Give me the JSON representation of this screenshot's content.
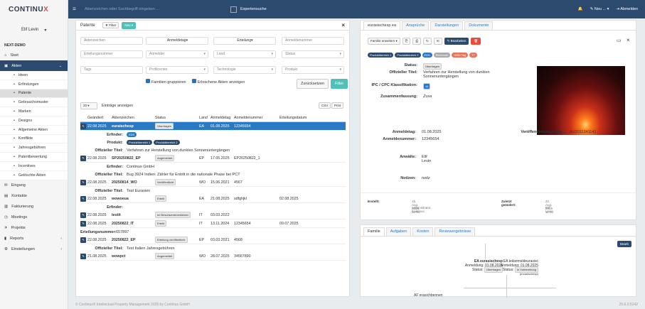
{
  "app": {
    "logo": "CONTINU",
    "logo_x": "X",
    "user": "Elif Levin",
    "org": "NEXT-DEMO",
    "version": "25.6.0.5242",
    "footer": "© Continux® Intellectual Property Management 2025 by Continux GmbH"
  },
  "top": {
    "search_placeholder": "Aktenzeichen oder Suchbegriff eingeben ...",
    "expert": "Expertensuche",
    "new": "Neu ...",
    "logout": "Abmelden"
  },
  "nav": [
    {
      "label": "Start",
      "icon": "⌂"
    },
    {
      "label": "Akten",
      "icon": "▣",
      "active": true
    },
    {
      "label": "Ideen",
      "sub": true
    },
    {
      "label": "Erfindungen",
      "sub": true
    },
    {
      "label": "Patente",
      "sub": true,
      "sel": true
    },
    {
      "label": "Gebrauchsmuster",
      "sub": true
    },
    {
      "label": "Marken",
      "sub": true
    },
    {
      "label": "Designs",
      "sub": true
    },
    {
      "label": "Allgemeine Akten",
      "sub": true
    },
    {
      "label": "Konflikte",
      "sub": true
    },
    {
      "label": "Jahresgebühren",
      "sub": true
    },
    {
      "label": "Patentbewertung",
      "sub": true
    },
    {
      "label": "Incentives",
      "sub": true
    },
    {
      "label": "Gelöschte Akten",
      "sub": true
    },
    {
      "label": "Eingang",
      "icon": "✉"
    },
    {
      "label": "Kontakte",
      "icon": "▤"
    },
    {
      "label": "Fakturierung",
      "icon": "▥"
    },
    {
      "label": "Meetings",
      "icon": "◷"
    },
    {
      "label": "Projekte",
      "icon": "✈"
    },
    {
      "label": "Reports",
      "icon": "▮",
      "arr": "‹"
    },
    {
      "label": "Einstellungen",
      "icon": "⚙",
      "arr": "‹"
    }
  ],
  "left": {
    "tab": "Patente",
    "filter": "Filter",
    "new": "Neu",
    "fields": [
      "Aktenzeichen",
      "Anmeldetag",
      "Erteilung",
      "Anmeldenummer",
      "Erteilungsnummer",
      "Anmelder",
      "Land",
      "Status",
      "Tags",
      "Profitcenter",
      "Technologie",
      "Produkt"
    ],
    "group": "Familien gruppieren",
    "deleted": "Erloschene Akten anzeigen",
    "reset": "Zurücksetzen",
    "filter_btn": "Filter",
    "per_page": "20",
    "per_label": "Einträge anzeigen",
    "csv": "CSV",
    "print": "Print",
    "headers": [
      "Geändert",
      "Aktenzeichen",
      "Status",
      "Land",
      "Anmeldetag",
      "Anmeldenummer",
      "Erteilungsdatum"
    ],
    "rows": [
      {
        "date": "22.08.2025",
        "az": "euraischesp",
        "status": "Übertragen",
        "land": "EA",
        "atag": "01.08.2025",
        "anr": "12345654",
        "edat": "",
        "sel": true
      },
      {
        "date": "22.08.2025",
        "az": "SP20250822_EP",
        "status": "Angemeldet",
        "land": "EP",
        "atag": "17.05.2025",
        "anr": "EP20250822_1",
        "edat": ""
      },
      {
        "date": "22.08.2025",
        "az": "20250814_WO",
        "status": "Veröffentlicht",
        "land": "WO",
        "atag": "15.06.2021",
        "anr": "4567",
        "edat": ""
      },
      {
        "date": "22.08.2025",
        "az": "wowoeua",
        "status": "Erteilt",
        "land": "EA",
        "atag": "21.08.2025",
        "anr": "sdfghjkl",
        "edat": "02.08.2025"
      },
      {
        "date": "22.08.2025",
        "az": "testit",
        "status": "Im Beschwerdeverfahren",
        "land": "IT",
        "atag": "03.03.2022",
        "anr": "",
        "edat": ""
      },
      {
        "date": "22.08.2025",
        "az": "20250822_IT",
        "status": "Erteilt",
        "land": "IT",
        "atag": "13.11.2024",
        "anr": "12345654",
        "edat": "09.07.2025"
      },
      {
        "date": "22.08.2025",
        "az": "20250822_EP",
        "status": "Erteilung veröffentlicht",
        "land": "EP",
        "atag": "03.03.2021",
        "anr": "4568",
        "edat": ""
      },
      {
        "date": "21.08.2025",
        "az": "wowpct",
        "status": "Angemeldet",
        "land": "WO",
        "atag": "28.07.2025",
        "anr": "34567890",
        "edat": ""
      }
    ],
    "d1": {
      "erfinder_l": "Erfinder:",
      "erfinder": "EDS",
      "produkt_l": "Produkt:",
      "p1": "Produktbereich 1",
      "p2": "Produktbereich 2",
      "titel_l": "Offizieller Titel:",
      "titel": "Verfahren zur Herstellung von dunklen Sonnenuntergängen"
    },
    "d2": {
      "erfinder": "Continux GmbH",
      "titel": "Bug 3924 Indien: Zähler für Entritt in die nationale Phase bei PCT"
    },
    "d3": {
      "titel": "Test Eurasien"
    },
    "d4": {
      "erfinder_l": "Erfinder:"
    },
    "d5": {
      "anr_l": "Erteilungsnummer:",
      "anr": "657897"
    },
    "d6": {
      "titel": "Test Italien Jahresgebühren"
    }
  },
  "right": {
    "tabs": [
      "eurasischesp ea",
      "Ansprüche",
      "Darstellungen",
      "Dokumente"
    ],
    "family_btn": "Familie erweitern",
    "edit": "Bearbeiten",
    "pills": [
      "Produktbereich 1",
      "Produktbereich 2",
      "EDS",
      "Elektronik",
      "GRM Tag",
      "TT"
    ],
    "status_l": "Status:",
    "status": "Übertragen",
    "titel_l": "Offizieller Titel:",
    "titel": "Verfahren zur Herstellung von dunklen Sonnenuntergängen",
    "ipc_l": "IPC / CPC Klassifikation:",
    "ipc": "44",
    "zus_l": "Zusammenfassung:",
    "zus": "Zusa",
    "atag_l": "Anmeldetag:",
    "atag": "01.08.2025",
    "anr_l": "Anmeldenummer:",
    "anr": "12345654",
    "vnr_l": "Veröffentlichungsnum...",
    "vnr": "AU2011341141",
    "anw_l": "Anwälte:",
    "anw": "Elif Levin",
    "not_l": "Notizen:",
    "not": "notiz",
    "erstellt_l": "Erstellt:",
    "erstellt": "15. Aug. 2025 10:51",
    "erstellt_by": "Administrator Continux",
    "geaendert_l": "Zuletzt geändert:",
    "geaendert": "22. Aug. 2025 11:06",
    "geaendert_by": "Elif Levin",
    "tabs2": [
      "Familie",
      "Aufgaben",
      "Kosten",
      "Reviewergebnisse"
    ],
    "bearb": "Bearb",
    "fam1": {
      "title": "EA eurasischesp",
      "anm": "Anmeldung: 01.08.2025",
      "status_l": "Status:",
      "status": "Übertragen"
    },
    "fam2": {
      "title": "EA teilanmeldeurasisc",
      "anm": "Anmeldung: 01.08.2025",
      "status_l": "Status:",
      "status": "In Vorbereitung",
      "sub": "(eurasischesp)"
    },
    "fam3": {
      "title": "AF erasichbennen"
    }
  }
}
